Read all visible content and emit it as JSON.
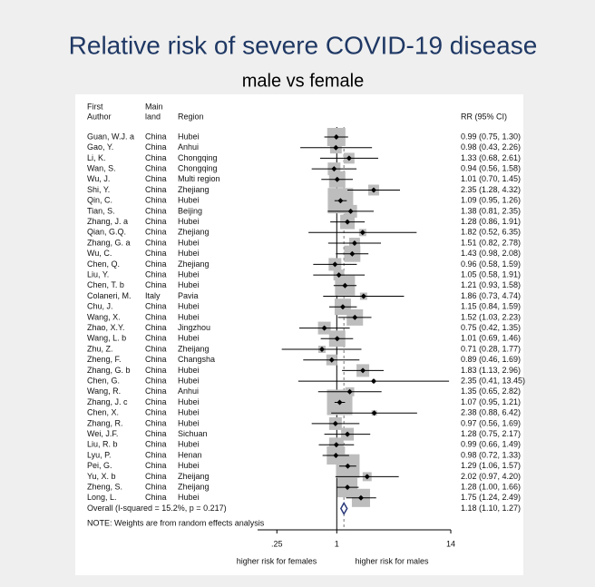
{
  "chart_data": {
    "type": "forest",
    "title": "Relative risk of severe COVID-19 disease",
    "subtitle": "male vs female",
    "author_header": [
      "First",
      "Author"
    ],
    "land_header": [
      "Main",
      "land"
    ],
    "region_header": "Region",
    "rr_header": "RR (95% CI)",
    "log_scale": true,
    "xlim": [
      0.16,
      14
    ],
    "xticks": [
      {
        "value": 0.25,
        "label": ".25"
      },
      1,
      14
    ],
    "x_caption_left": "higher risk for females",
    "x_caption_right": "higher risk for males",
    "note": "NOTE: Weights are from random effects analysis",
    "box_color": "#bdbdbd",
    "studies": [
      {
        "author": "Guan, W.J. a",
        "land": "China",
        "region": "Hubei",
        "rr": 0.99,
        "lower": 0.75,
        "upper": 1.3,
        "weight": 8.2,
        "value_label": "0.99 (0.75, 1.30)"
      },
      {
        "author": "Gao, Y.",
        "land": "China",
        "region": "Anhui",
        "rr": 0.98,
        "lower": 0.43,
        "upper": 2.26,
        "weight": 3.4,
        "value_label": "0.98 (0.43, 2.26)"
      },
      {
        "author": "Li, K.",
        "land": "China",
        "region": "Chongqing",
        "rr": 1.33,
        "lower": 0.68,
        "upper": 2.61,
        "weight": 2.9,
        "value_label": "1.33 (0.68, 2.61)"
      },
      {
        "author": "Wan, S.",
        "land": "China",
        "region": "Chongqing",
        "rr": 0.94,
        "lower": 0.56,
        "upper": 1.58,
        "weight": 4.0,
        "value_label": "0.94 (0.56, 1.58)"
      },
      {
        "author": "Wu, J.",
        "land": "China",
        "region": "Multi region",
        "rr": 1.01,
        "lower": 0.7,
        "upper": 1.45,
        "weight": 6.6,
        "value_label": "1.01 (0.70, 1.45)"
      },
      {
        "author": "Shi, Y.",
        "land": "China",
        "region": "Zhejiang",
        "rr": 2.35,
        "lower": 1.28,
        "upper": 4.32,
        "weight": 2.9,
        "value_label": "2.35 (1.28, 4.32)"
      },
      {
        "author": "Qin, C.",
        "land": "China",
        "region": "Hubei",
        "rr": 1.09,
        "lower": 0.95,
        "upper": 1.26,
        "weight": 16,
        "value_label": "1.09 (0.95, 1.26)"
      },
      {
        "author": "Tian, S.",
        "land": "China",
        "region": "Beijing",
        "rr": 1.38,
        "lower": 0.81,
        "upper": 2.35,
        "weight": 4.0,
        "value_label": "1.38 (0.81, 2.35)"
      },
      {
        "author": "Zhang, J. a",
        "land": "China",
        "region": "Hubei",
        "rr": 1.28,
        "lower": 0.86,
        "upper": 1.91,
        "weight": 5.2,
        "value_label": "1.28 (0.86, 1.91)"
      },
      {
        "author": "Qian, G.Q.",
        "land": "China",
        "region": "Zhejiang",
        "rr": 1.82,
        "lower": 0.52,
        "upper": 6.35,
        "weight": 1.3,
        "value_label": "1.82 (0.52, 6.35)"
      },
      {
        "author": "Zhang, G. a",
        "land": "China",
        "region": "Hubei",
        "rr": 1.51,
        "lower": 0.82,
        "upper": 2.78,
        "weight": 2.9,
        "value_label": "1.51 (0.82, 2.78)"
      },
      {
        "author": "Wu, C.",
        "land": "China",
        "region": "Hubei",
        "rr": 1.43,
        "lower": 0.98,
        "upper": 2.08,
        "weight": 6.6,
        "value_label": "1.43 (0.98, 2.08)"
      },
      {
        "author": "Chen, Q.",
        "land": "China",
        "region": "Zhejiang",
        "rr": 0.96,
        "lower": 0.58,
        "upper": 1.59,
        "weight": 4.0,
        "value_label": "0.96 (0.58, 1.59)"
      },
      {
        "author": "Liu, Y.",
        "land": "China",
        "region": "Hubei",
        "rr": 1.05,
        "lower": 0.58,
        "upper": 1.91,
        "weight": 2.9,
        "value_label": "1.05 (0.58, 1.91)"
      },
      {
        "author": "Chen, T. b",
        "land": "China",
        "region": "Hubei",
        "rr": 1.21,
        "lower": 0.93,
        "upper": 1.58,
        "weight": 9.9,
        "value_label": "1.21 (0.93, 1.58)"
      },
      {
        "author": "Colaneri, M.",
        "land": "Italy",
        "region": "Pavia",
        "rr": 1.86,
        "lower": 0.73,
        "upper": 4.74,
        "weight": 1.3,
        "value_label": "1.86 (0.73, 4.74)"
      },
      {
        "author": "Chu, J.",
        "land": "China",
        "region": "Hubei",
        "rr": 1.15,
        "lower": 0.84,
        "upper": 1.59,
        "weight": 6.6,
        "value_label": "1.15 (0.84, 1.59)"
      },
      {
        "author": "Wang, X.",
        "land": "China",
        "region": "Hubei",
        "rr": 1.52,
        "lower": 1.03,
        "upper": 2.23,
        "weight": 6.6,
        "value_label": "1.52 (1.03, 2.23)"
      },
      {
        "author": "Zhao, X.Y.",
        "land": "China",
        "region": "Jingzhou",
        "rr": 0.75,
        "lower": 0.42,
        "upper": 1.35,
        "weight": 4.0,
        "value_label": "0.75 (0.42, 1.35)"
      },
      {
        "author": "Wang, L. b",
        "land": "China",
        "region": "Hubei",
        "rr": 1.01,
        "lower": 0.69,
        "upper": 1.46,
        "weight": 6.6,
        "value_label": "1.01 (0.69, 1.46)"
      },
      {
        "author": "Zhu, Z.",
        "land": "China",
        "region": "Zheijang",
        "rr": 0.71,
        "lower": 0.28,
        "upper": 1.77,
        "weight": 1.3,
        "value_label": "0.71 (0.28, 1.77)"
      },
      {
        "author": "Zheng, F.",
        "land": "China",
        "region": "Changsha",
        "rr": 0.89,
        "lower": 0.46,
        "upper": 1.69,
        "weight": 2.9,
        "value_label": "0.89 (0.46, 1.69)"
      },
      {
        "author": "Zhang, G. b",
        "land": "China",
        "region": "Hubei",
        "rr": 1.83,
        "lower": 1.13,
        "upper": 2.96,
        "weight": 4.0,
        "value_label": "1.83 (1.13, 2.96)"
      },
      {
        "author": "Chen, G.",
        "land": "China",
        "region": "Hubei",
        "rr": 2.35,
        "lower": 0.41,
        "upper": 13.45,
        "weight": 0.3,
        "value_label": "2.35 (0.41, 13.45)"
      },
      {
        "author": "Wang, R.",
        "land": "China",
        "region": "Anhui",
        "rr": 1.35,
        "lower": 0.65,
        "upper": 2.82,
        "weight": 2.0,
        "value_label": "1.35 (0.65, 2.82)"
      },
      {
        "author": "Zhang, J. c",
        "land": "China",
        "region": "Hubei",
        "rr": 1.07,
        "lower": 0.95,
        "upper": 1.21,
        "weight": 16,
        "value_label": "1.07 (0.95, 1.21)"
      },
      {
        "author": "Chen, X.",
        "land": "China",
        "region": "Hubei",
        "rr": 2.38,
        "lower": 0.88,
        "upper": 6.42,
        "weight": 0.7,
        "value_label": "2.38 (0.88, 6.42)"
      },
      {
        "author": "Zhang, R.",
        "land": "China",
        "region": "Hubei",
        "rr": 0.97,
        "lower": 0.56,
        "upper": 1.69,
        "weight": 4.0,
        "value_label": "0.97 (0.56, 1.69)"
      },
      {
        "author": "Wei, J.F.",
        "land": "China",
        "region": "Sichuan",
        "rr": 1.28,
        "lower": 0.75,
        "upper": 2.17,
        "weight": 4.0,
        "value_label": "1.28 (0.75, 2.17)"
      },
      {
        "author": "Liu, R. b",
        "land": "China",
        "region": "Hubei",
        "rr": 0.99,
        "lower": 0.66,
        "upper": 1.49,
        "weight": 5.2,
        "value_label": "0.99 (0.66, 1.49)"
      },
      {
        "author": "Lyu, P.",
        "land": "China",
        "region": "Henan",
        "rr": 0.98,
        "lower": 0.72,
        "upper": 1.33,
        "weight": 8.2,
        "value_label": "0.98 (0.72, 1.33)"
      },
      {
        "author": "Pei, G.",
        "land": "China",
        "region": "Hubei",
        "rr": 1.29,
        "lower": 1.06,
        "upper": 1.57,
        "weight": 13.8,
        "value_label": "1.29 (1.06, 1.57)"
      },
      {
        "author": "Yu, X. b",
        "land": "China",
        "region": "Zheijang",
        "rr": 2.02,
        "lower": 0.97,
        "upper": 4.2,
        "weight": 2.0,
        "value_label": "2.02 (0.97, 4.20)"
      },
      {
        "author": "Zheng, S.",
        "land": "China",
        "region": "Zheijang",
        "rr": 1.28,
        "lower": 1.0,
        "upper": 1.66,
        "weight": 9.9,
        "value_label": "1.28 (1.00, 1.66)"
      },
      {
        "author": "Long, L.",
        "land": "China",
        "region": "Hubei",
        "rr": 1.75,
        "lower": 1.24,
        "upper": 2.49,
        "weight": 8.2,
        "value_label": "1.75 (1.24, 2.49)"
      }
    ],
    "overall": {
      "label": "Overall  (I-squared = 15.2%, p = 0.217)",
      "rr": 1.18,
      "lower": 1.1,
      "upper": 1.27,
      "value_label": "1.18 (1.10, 1.27)"
    }
  }
}
